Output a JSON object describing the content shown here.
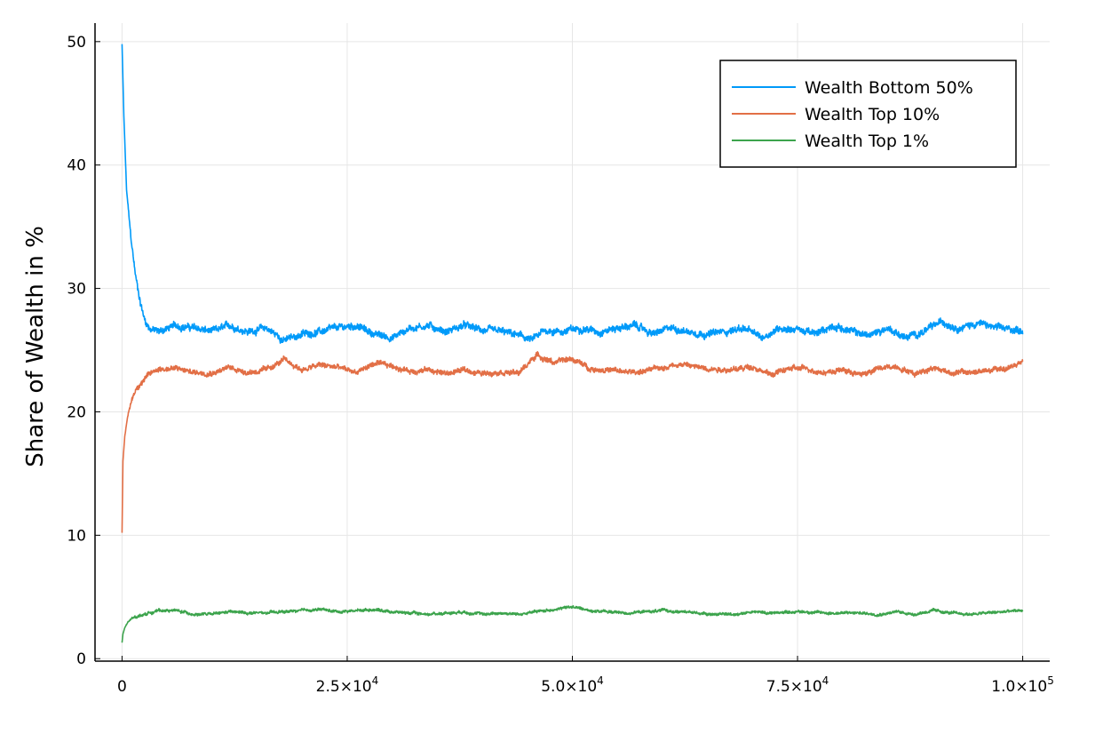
{
  "chart_data": {
    "type": "line",
    "title": "",
    "xlabel": "",
    "ylabel": "Share of Wealth in %",
    "xlim": [
      -3000,
      103000
    ],
    "ylim": [
      -0.2,
      51.5
    ],
    "grid": true,
    "legend_position": "top-right",
    "x_ticks": [
      {
        "value": 0,
        "mantissa": "0",
        "exp": ""
      },
      {
        "value": 25000,
        "mantissa": "2.5×10",
        "exp": "4"
      },
      {
        "value": 50000,
        "mantissa": "5.0×10",
        "exp": "4"
      },
      {
        "value": 75000,
        "mantissa": "7.5×10",
        "exp": "4"
      },
      {
        "value": 100000,
        "mantissa": "1.0×10",
        "exp": "5"
      }
    ],
    "y_ticks": [
      {
        "value": 0,
        "label": "0"
      },
      {
        "value": 10,
        "label": "10"
      },
      {
        "value": 20,
        "label": "20"
      },
      {
        "value": 30,
        "label": "30"
      },
      {
        "value": 40,
        "label": "40"
      },
      {
        "value": 50,
        "label": "50"
      }
    ],
    "series": [
      {
        "name": "Wealth Bottom 50%",
        "color": "#009af9",
        "x": [
          0,
          200,
          500,
          1000,
          1500,
          2000,
          2500,
          3000,
          4000,
          6000,
          8000,
          10000,
          12000,
          14000,
          16000,
          18000,
          20000,
          22000,
          24000,
          26000,
          28000,
          30000,
          32000,
          34000,
          36000,
          38000,
          40000,
          42000,
          44000,
          45500,
          47000,
          49000,
          51000,
          53000,
          55000,
          57000,
          59000,
          61000,
          63000,
          65000,
          67000,
          69000,
          71000,
          73000,
          75000,
          77000,
          79000,
          81000,
          83000,
          85000,
          87000,
          89000,
          91000,
          93000,
          95000,
          97000,
          100000
        ],
        "y": [
          49.8,
          44,
          38,
          34,
          31,
          29,
          27.5,
          26.8,
          26.5,
          27,
          26.8,
          26.5,
          27,
          26.5,
          26.8,
          25.8,
          26.3,
          26.5,
          26.8,
          27,
          26.3,
          26,
          26.8,
          27,
          26.5,
          27,
          26.6,
          26.5,
          26.2,
          25.8,
          26.6,
          26.5,
          26.8,
          26.5,
          26.8,
          27,
          26.3,
          26.8,
          26.5,
          26.3,
          26.5,
          26.8,
          26,
          26.8,
          26.7,
          26.3,
          27,
          26.5,
          26.2,
          26.8,
          26,
          26.5,
          27.3,
          26.8,
          27.2,
          26.8,
          26.6
        ],
        "noise": 0.45
      },
      {
        "name": "Wealth Top 10%",
        "color": "#e26f46",
        "x": [
          0,
          100,
          300,
          600,
          1000,
          1500,
          2000,
          3000,
          4000,
          6000,
          8000,
          10000,
          12000,
          14000,
          16000,
          18000,
          20000,
          22000,
          24000,
          26000,
          28000,
          30000,
          32000,
          34000,
          36000,
          38000,
          40000,
          42000,
          44000,
          46000,
          48000,
          50000,
          52000,
          54000,
          56000,
          58000,
          60000,
          62000,
          64000,
          66000,
          68000,
          70000,
          72000,
          74000,
          76000,
          78000,
          80000,
          82000,
          84000,
          86000,
          88000,
          90000,
          92000,
          94000,
          96000,
          98000,
          100000
        ],
        "y": [
          10.2,
          16,
          18,
          19.5,
          20.8,
          21.8,
          22.3,
          23,
          23.5,
          23.5,
          23.2,
          23.2,
          23.6,
          23.2,
          23.4,
          24.2,
          23.4,
          23.8,
          23.6,
          23.2,
          23.9,
          23.7,
          23.3,
          23.4,
          23.1,
          23.4,
          23.1,
          23.3,
          23.1,
          24.6,
          24,
          24.3,
          23.5,
          23.4,
          23.2,
          23.3,
          23.6,
          23.9,
          23.6,
          23.5,
          23.4,
          23.7,
          23,
          23.5,
          23.5,
          23.2,
          23.4,
          23,
          23.5,
          23.7,
          23.1,
          23.6,
          23.2,
          23.2,
          23.3,
          23.5,
          24
        ],
        "noise": 0.35
      },
      {
        "name": "Wealth Top 1%",
        "color": "#3da44d",
        "x": [
          0,
          100,
          300,
          600,
          1000,
          1500,
          2000,
          3000,
          4000,
          6000,
          8000,
          10000,
          12000,
          14000,
          16000,
          18000,
          20000,
          22000,
          24000,
          26000,
          28000,
          30000,
          32000,
          34000,
          36000,
          38000,
          40000,
          42000,
          44000,
          46000,
          48000,
          50000,
          52000,
          54000,
          56000,
          58000,
          60000,
          62000,
          64000,
          66000,
          68000,
          70000,
          72000,
          74000,
          76000,
          78000,
          80000,
          82000,
          84000,
          86000,
          88000,
          90000,
          92000,
          94000,
          96000,
          98000,
          100000
        ],
        "y": [
          1.3,
          2,
          2.5,
          2.9,
          3.2,
          3.4,
          3.5,
          3.7,
          3.9,
          3.9,
          3.6,
          3.6,
          3.8,
          3.7,
          3.7,
          3.8,
          3.9,
          4,
          3.8,
          3.9,
          4,
          3.8,
          3.7,
          3.6,
          3.7,
          3.8,
          3.6,
          3.7,
          3.6,
          3.8,
          4,
          4.2,
          3.9,
          3.8,
          3.7,
          3.8,
          3.9,
          3.8,
          3.7,
          3.6,
          3.6,
          3.8,
          3.7,
          3.8,
          3.8,
          3.7,
          3.7,
          3.7,
          3.6,
          3.8,
          3.6,
          3.9,
          3.7,
          3.6,
          3.7,
          3.8,
          3.9
        ],
        "noise": 0.18
      }
    ]
  }
}
